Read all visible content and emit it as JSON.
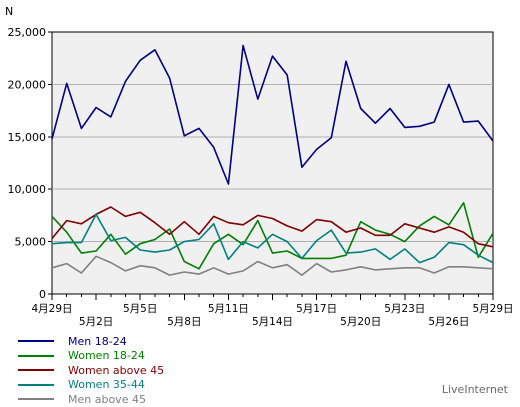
{
  "chart_data": {
    "type": "line",
    "ylabel": "N",
    "ylim": [
      0,
      25000
    ],
    "yticks": [
      0,
      5000,
      10000,
      15000,
      20000,
      25000
    ],
    "ytick_labels": [
      "0",
      "5,000",
      "10,000",
      "15,000",
      "20,000",
      "25,000"
    ],
    "x": [
      "4月29日",
      "4月30日",
      "5月1日",
      "5月2日",
      "5月3日",
      "5月4日",
      "5月5日",
      "5月6日",
      "5月7日",
      "5月8日",
      "5月9日",
      "5月10日",
      "5月11日",
      "5月12日",
      "5月13日",
      "5月14日",
      "5月15日",
      "5月16日",
      "5月17日",
      "5月18日",
      "5月19日",
      "5月20日",
      "5月21日",
      "5月22日",
      "5月23日",
      "5月24日",
      "5月25日",
      "5月26日",
      "5月27日",
      "5月28日",
      "5月29日"
    ],
    "xtick_labels_upper": [
      "4月29日",
      "5月5日",
      "5月11日",
      "5月17日",
      "5月23日",
      "5月29日"
    ],
    "xtick_labels_lower": [
      "5月2日",
      "5月8日",
      "5月14日",
      "5月20日",
      "5月26日"
    ],
    "grid": true,
    "legend_position": "bottom-left",
    "series": [
      {
        "name": "Men 18-24",
        "color": "#000080",
        "values": [
          14800,
          20100,
          15800,
          17800,
          16900,
          20300,
          22300,
          23300,
          20600,
          15100,
          15800,
          14000,
          10500,
          23700,
          18600,
          22700,
          20900,
          12100,
          13800,
          14900,
          22200,
          17700,
          16300,
          17700,
          15900,
          16000,
          16400,
          20000,
          16400,
          16500,
          14600
        ]
      },
      {
        "name": "Women 18-24",
        "color": "#008000",
        "values": [
          7400,
          5900,
          3900,
          4100,
          5700,
          3800,
          4800,
          5200,
          6200,
          3100,
          2400,
          4800,
          5700,
          4700,
          7000,
          3900,
          4100,
          3400,
          3400,
          3400,
          3700,
          6900,
          6100,
          5700,
          5000,
          6500,
          7400,
          6600,
          8700,
          3500,
          5800
        ]
      },
      {
        "name": "Women above 45",
        "color": "#800000",
        "values": [
          5300,
          7000,
          6700,
          7600,
          8300,
          7400,
          7800,
          6800,
          5700,
          6900,
          5700,
          7400,
          6800,
          6600,
          7500,
          7200,
          6500,
          6000,
          7100,
          6900,
          5900,
          6300,
          5600,
          5600,
          6700,
          6300,
          5900,
          6400,
          5900,
          4800,
          4500
        ]
      },
      {
        "name": "Women 35-44",
        "color": "#008080",
        "values": [
          4800,
          4900,
          4900,
          7600,
          5100,
          5400,
          4200,
          4000,
          4200,
          5000,
          5200,
          6700,
          3300,
          5000,
          4400,
          5700,
          5000,
          3400,
          5100,
          6100,
          3900,
          4000,
          4300,
          3300,
          4300,
          3000,
          3500,
          4900,
          4700,
          3700,
          3000
        ]
      },
      {
        "name": "Men above 45",
        "color": "#808080",
        "values": [
          2500,
          2900,
          2000,
          3600,
          3000,
          2200,
          2700,
          2500,
          1800,
          2100,
          1900,
          2500,
          1900,
          2200,
          3100,
          2500,
          2800,
          1800,
          2900,
          2100,
          2300,
          2600,
          2300,
          2400,
          2500,
          2500,
          2000,
          2600,
          2600,
          2500,
          2400
        ]
      }
    ]
  },
  "branding": "LiveInternet"
}
